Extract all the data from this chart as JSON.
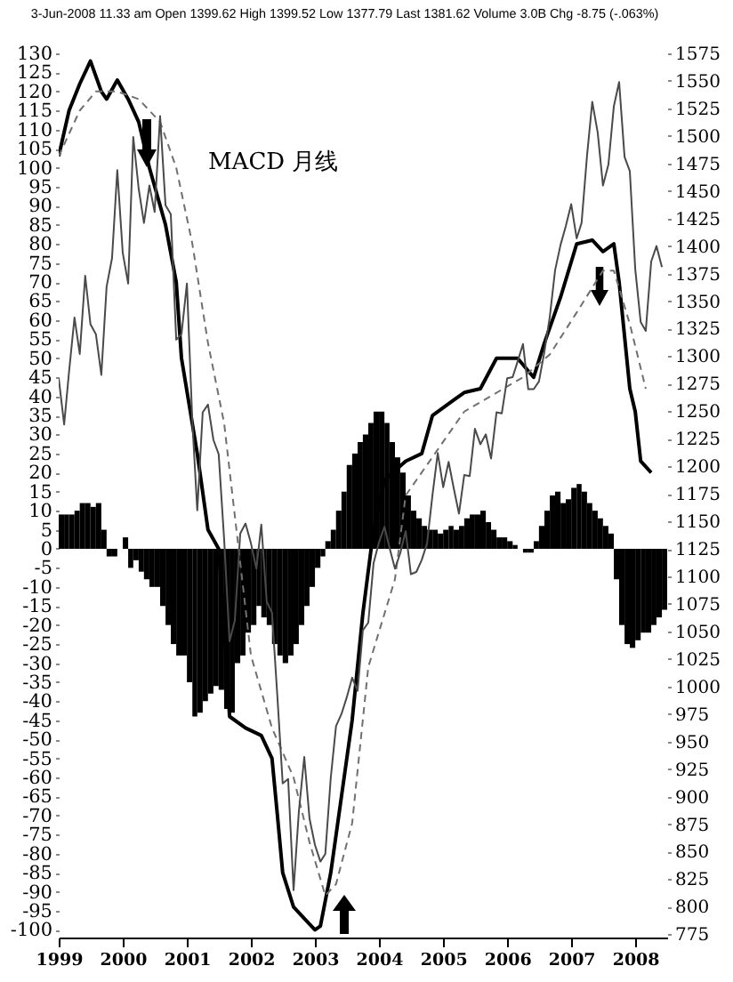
{
  "chart_data": {
    "type": "line",
    "title": "3-Jun-2008 11.33 am   Open 1399.62 High 1399.52 Low 1377.79 Last 1381.62 Volume 3.0B Chg -8.75 (-.063%)",
    "annotations": [
      "MACD 月线"
    ],
    "x": [
      "1999-01",
      "1999-02",
      "1999-03",
      "1999-04",
      "1999-05",
      "1999-06",
      "1999-07",
      "1999-08",
      "1999-09",
      "1999-10",
      "1999-11",
      "1999-12",
      "2000-01",
      "2000-02",
      "2000-03",
      "2000-04",
      "2000-05",
      "2000-06",
      "2000-07",
      "2000-08",
      "2000-09",
      "2000-10",
      "2000-11",
      "2000-12",
      "2001-01",
      "2001-02",
      "2001-03",
      "2001-04",
      "2001-05",
      "2001-06",
      "2001-07",
      "2001-08",
      "2001-09",
      "2001-10",
      "2001-11",
      "2001-12",
      "2002-01",
      "2002-02",
      "2002-03",
      "2002-04",
      "2002-05",
      "2002-06",
      "2002-07",
      "2002-08",
      "2002-09",
      "2002-10",
      "2002-11",
      "2002-12",
      "2003-01",
      "2003-02",
      "2003-03",
      "2003-04",
      "2003-05",
      "2003-06",
      "2003-07",
      "2003-08",
      "2003-09",
      "2003-10",
      "2003-11",
      "2003-12",
      "2004-01",
      "2004-02",
      "2004-03",
      "2004-04",
      "2004-05",
      "2004-06",
      "2004-07",
      "2004-08",
      "2004-09",
      "2004-10",
      "2004-11",
      "2004-12",
      "2005-01",
      "2005-02",
      "2005-03",
      "2005-04",
      "2005-05",
      "2005-06",
      "2005-07",
      "2005-08",
      "2005-09",
      "2005-10",
      "2005-11",
      "2005-12",
      "2006-01",
      "2006-02",
      "2006-03",
      "2006-04",
      "2006-05",
      "2006-06",
      "2006-07",
      "2006-08",
      "2006-09",
      "2006-10",
      "2006-11",
      "2006-12",
      "2007-01",
      "2007-02",
      "2007-03",
      "2007-04",
      "2007-05",
      "2007-06",
      "2007-07",
      "2007-08",
      "2007-09",
      "2007-10",
      "2007-11",
      "2007-12",
      "2008-01",
      "2008-02",
      "2008-03",
      "2008-04",
      "2008-05",
      "2008-06"
    ],
    "xlim": [
      "1999-01",
      "2008-07"
    ],
    "xticks": [
      "1999",
      "2000",
      "2001",
      "2002",
      "2003",
      "2004",
      "2005",
      "2006",
      "2007",
      "2008"
    ],
    "ylim": [
      -102,
      130
    ],
    "yticks": [
      -100,
      -95,
      -90,
      -85,
      -80,
      -75,
      -70,
      -65,
      -60,
      -55,
      -50,
      -45,
      -40,
      -35,
      -30,
      -25,
      -20,
      -15,
      -10,
      -5,
      0,
      5,
      10,
      15,
      20,
      25,
      30,
      35,
      40,
      45,
      50,
      55,
      60,
      65,
      70,
      75,
      80,
      85,
      90,
      95,
      100,
      105,
      110,
      115,
      120,
      125,
      130
    ],
    "y2lim": [
      772,
      1575
    ],
    "y2ticks": [
      775,
      800,
      825,
      850,
      875,
      900,
      925,
      950,
      975,
      1000,
      1025,
      1050,
      1075,
      1100,
      1125,
      1150,
      1175,
      1200,
      1225,
      1250,
      1275,
      1300,
      1325,
      1350,
      1375,
      1400,
      1425,
      1450,
      1475,
      1500,
      1525,
      1550,
      1575
    ],
    "series": [
      {
        "axis": "y2",
        "color": "#4a4a4a",
        "values": [
          1280,
          1238,
          1286,
          1335,
          1302,
          1373,
          1329,
          1320,
          1283,
          1363,
          1389,
          1469,
          1394,
          1366,
          1499,
          1452,
          1421,
          1455,
          1431,
          1518,
          1437,
          1429,
          1315,
          1320,
          1366,
          1240,
          1160,
          1249,
          1256,
          1224,
          1211,
          1134,
          1041,
          1060,
          1139,
          1148,
          1130,
          1107,
          1147,
          1077,
          1067,
          990,
          912,
          916,
          815,
          886,
          936,
          880,
          856,
          841,
          848,
          917,
          964,
          975,
          990,
          1008,
          996,
          1051,
          1058,
          1112,
          1131,
          1145,
          1126,
          1107,
          1121,
          1141,
          1102,
          1104,
          1115,
          1130,
          1174,
          1212,
          1181,
          1204,
          1181,
          1157,
          1192,
          1191,
          1234,
          1220,
          1229,
          1207,
          1249,
          1248,
          1280,
          1281,
          1295,
          1311,
          1270,
          1270,
          1277,
          1304,
          1336,
          1378,
          1401,
          1418,
          1438,
          1407,
          1421,
          1482,
          1531,
          1503,
          1455,
          1474,
          1527,
          1549,
          1481,
          1468,
          1379,
          1331,
          1323,
          1386,
          1400,
          1381
        ]
      },
      {
        "type": "bar",
        "color": "#000000",
        "values": [
          9,
          9,
          9,
          10,
          12,
          12,
          11,
          12,
          5,
          -2,
          -2,
          0,
          3,
          -5,
          -3,
          -6,
          -8,
          -10,
          -10,
          -15,
          -20,
          -25,
          -28,
          -28,
          -35,
          -44,
          -43,
          -40,
          -38,
          -36,
          -37,
          -42,
          -43,
          -30,
          -28,
          -22,
          -20,
          -15,
          -18,
          -20,
          -25,
          -28,
          -30,
          -28,
          -25,
          -20,
          -15,
          -10,
          -5,
          -2,
          2,
          5,
          10,
          15,
          22,
          25,
          28,
          30,
          33,
          36,
          36,
          33,
          28,
          24,
          20,
          14,
          10,
          8,
          6,
          5,
          5,
          4,
          5,
          6,
          5,
          6,
          8,
          9,
          9,
          10,
          7,
          5,
          3,
          3,
          2,
          1,
          0,
          -1,
          -1,
          2,
          6,
          10,
          14,
          15,
          12,
          13,
          16,
          17,
          15,
          12,
          10,
          8,
          6,
          4,
          -8,
          -20,
          -25,
          -26,
          -24,
          -22,
          -22,
          -20,
          -18,
          -16
        ]
      },
      {
        "color": "#000000",
        "x": [
          "1999-01",
          "1999-03",
          "1999-05",
          "1999-07",
          "1999-09",
          "1999-10",
          "1999-12",
          "2000-02",
          "2000-04",
          "2000-06",
          "2000-09",
          "2000-11",
          "2000-12",
          "2001-03",
          "2001-05",
          "2001-07",
          "2001-08",
          "2001-09",
          "2001-12",
          "2002-03",
          "2002-05",
          "2002-06",
          "2002-07",
          "2002-09",
          "2002-11",
          "2003-01",
          "2003-02",
          "2003-04",
          "2003-06",
          "2003-08",
          "2003-10",
          "2003-12",
          "2004-02",
          "2004-06",
          "2004-09",
          "2004-11",
          "2005-03",
          "2005-05",
          "2005-08",
          "2005-11",
          "2006-03",
          "2006-06",
          "2006-08",
          "2006-11",
          "2007-02",
          "2007-05",
          "2007-07",
          "2007-09",
          "2007-10",
          "2007-12",
          "2008-01",
          "2008-02",
          "2008-04"
        ],
        "values": [
          103,
          115,
          122,
          128,
          120,
          118,
          123,
          118,
          112,
          100,
          85,
          70,
          50,
          25,
          5,
          0,
          -20,
          -44,
          -47,
          -49,
          -55,
          -70,
          -85,
          -94,
          -97,
          -100,
          -99,
          -85,
          -65,
          -45,
          -17,
          5,
          18,
          23,
          25,
          35,
          39,
          41,
          42,
          50,
          50,
          45,
          54,
          66,
          80,
          81,
          78,
          80,
          70,
          42,
          36,
          23,
          20
        ]
      },
      {
        "color": "#707070",
        "line_style": "dashed",
        "x": [
          "1999-01",
          "1999-05",
          "1999-08",
          "1999-12",
          "2000-04",
          "2000-08",
          "2000-11",
          "2001-02",
          "2001-05",
          "2001-08",
          "2002-01",
          "2002-05",
          "2002-09",
          "2002-12",
          "2003-03",
          "2003-05",
          "2003-08",
          "2003-11",
          "2004-04",
          "2004-06",
          "2005-05",
          "2006-04",
          "2006-09",
          "2007-02",
          "2007-07",
          "2007-09",
          "2007-12",
          "2008-03"
        ],
        "values": [
          103,
          115,
          120,
          120,
          118,
          112,
          100,
          80,
          54,
          33,
          -28,
          -47,
          -60,
          -77,
          -91,
          -88,
          -72,
          -31,
          -8,
          14,
          36,
          45,
          51,
          62,
          73,
          73,
          59,
          42
        ]
      }
    ]
  }
}
